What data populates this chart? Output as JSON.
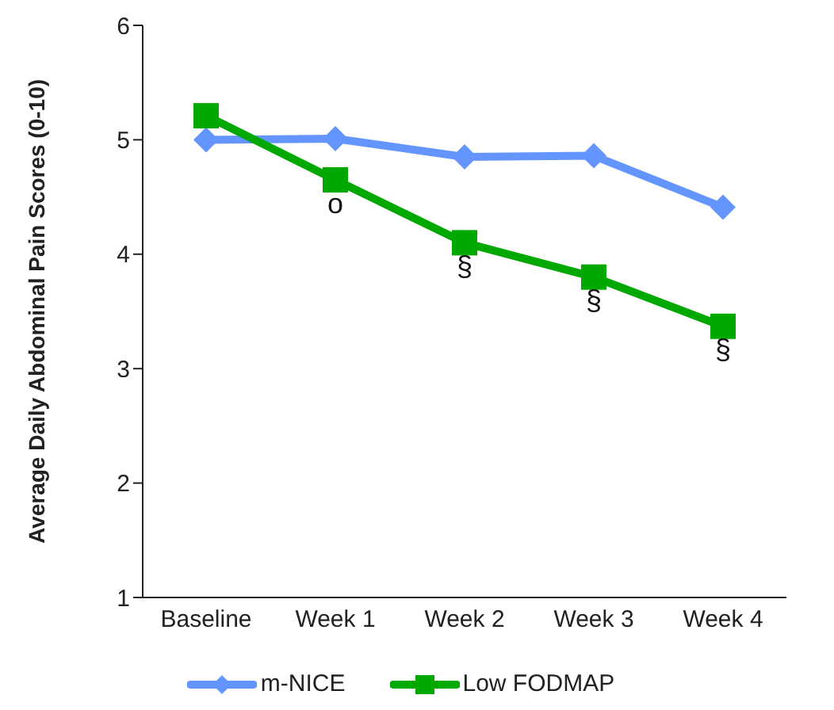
{
  "chart_data": {
    "type": "line",
    "ylabel": "Average Daily Abdominal Pain Scores (0-10)",
    "categories": [
      "Baseline",
      "Week 1",
      "Week 2",
      "Week 3",
      "Week 4"
    ],
    "series": [
      {
        "name": "m-NICE",
        "color": "#6495ff",
        "marker": "diamond",
        "values": [
          5.0,
          5.01,
          4.85,
          4.86,
          4.41
        ]
      },
      {
        "name": "Low FODMAP",
        "color": "#00a800",
        "marker": "square",
        "values": [
          5.21,
          4.65,
          4.1,
          3.8,
          3.37
        ]
      }
    ],
    "annotations": [
      {
        "text": "o",
        "x": "Week 1",
        "y": 4.65
      },
      {
        "text": "§",
        "x": "Week 2",
        "y": 4.1
      },
      {
        "text": "§",
        "x": "Week 3",
        "y": 3.8
      },
      {
        "text": "§",
        "x": "Week 4",
        "y": 3.37
      }
    ],
    "ylim": [
      1,
      6
    ],
    "yticks": [
      1,
      2,
      3,
      4,
      5,
      6
    ],
    "grid": false,
    "legend": "bottom",
    "line_style": "solid"
  }
}
